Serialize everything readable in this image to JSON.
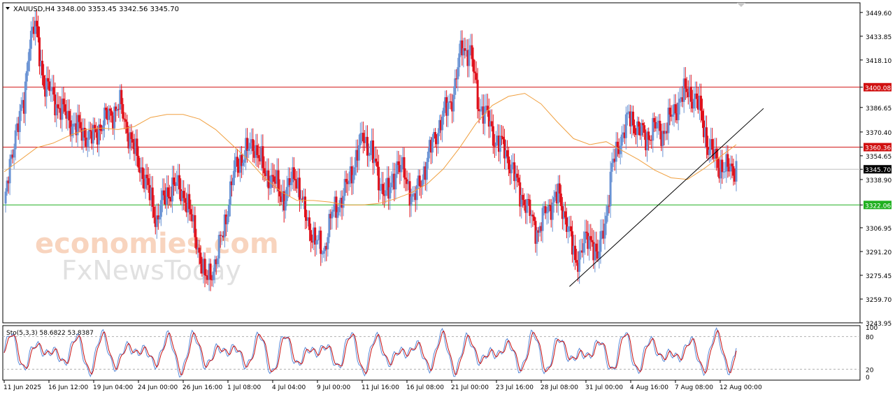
{
  "header": {
    "symbol": "XAUUSD,H4",
    "ohlc": "3348.00 3353.45 3342.56 3345.70"
  },
  "watermark": {
    "line1": "economies.com",
    "line2": "FxNewsToday"
  },
  "colors": {
    "bull": "#6a93d4",
    "bear": "#e0101a",
    "ma": "#f0a040",
    "resistance": "#d01010",
    "support": "#20b020",
    "trendline": "#000000",
    "stoch_main": "#5a8ad8",
    "stoch_signal": "#c81010"
  },
  "chart_data": [
    {
      "type": "candlestick",
      "symbol": "XAUUSD",
      "timeframe": "H4",
      "price_axis_ticks": [
        "3449.60",
        "3433.85",
        "3418.10",
        "3400.08",
        "3386.65",
        "3370.40",
        "3360.36",
        "3354.65",
        "3345.70",
        "3338.90",
        "3322.06",
        "3306.95",
        "3291.20",
        "3275.45",
        "3259.70",
        "3243.95"
      ],
      "ylim": [
        3243.95,
        3456
      ],
      "time_axis_labels": [
        "11 Jun 2025",
        "16 Jun 12:00",
        "19 Jun 04:00",
        "24 Jun 00:00",
        "26 Jun 16:00",
        "1 Jul 08:00",
        "4 Jul 04:00",
        "9 Jul 00:00",
        "11 Jul 16:00",
        "16 Jul 08:00",
        "21 Jul 00:00",
        "23 Jul 16:00",
        "28 Jul 08:00",
        "31 Jul 00:00",
        "4 Aug 16:00",
        "7 Aug 08:00",
        "12 Aug 00:00"
      ],
      "last_price": 3345.7,
      "horizontal_levels": [
        {
          "value": 3400.08,
          "label": "3400.08",
          "role": "resistance"
        },
        {
          "value": 3360.36,
          "label": "3360.36",
          "role": "resistance"
        },
        {
          "value": 3345.7,
          "label": "3345.70",
          "role": "current"
        },
        {
          "value": 3322.06,
          "label": "3322.06",
          "role": "support"
        }
      ],
      "trendline": {
        "from": {
          "time": "30 Jul 2025",
          "price": 3268
        },
        "to": {
          "time": "13 Aug 2025",
          "price": 3386
        }
      },
      "moving_average": [
        3344,
        3352,
        3360,
        3363,
        3368,
        3372,
        3373,
        3372,
        3374,
        3380,
        3382,
        3382,
        3379,
        3372,
        3362,
        3352,
        3340,
        3331,
        3325,
        3325,
        3324,
        3322,
        3322,
        3323,
        3326,
        3330,
        3336,
        3346,
        3360,
        3376,
        3388,
        3394,
        3396,
        3389,
        3377,
        3366,
        3362,
        3364,
        3358,
        3352,
        3345,
        3340,
        3339,
        3346,
        3354,
        3362
      ]
    },
    {
      "type": "line",
      "indicator": "Stochastic",
      "label": "Sto(5,3,3) 58.6822 53.8387",
      "levels": [
        "100",
        "80",
        "20",
        "0"
      ],
      "ylim": [
        0,
        100
      ],
      "series": [
        {
          "name": "main",
          "last": 58.6822
        },
        {
          "name": "signal",
          "last": 53.8387
        }
      ]
    }
  ]
}
